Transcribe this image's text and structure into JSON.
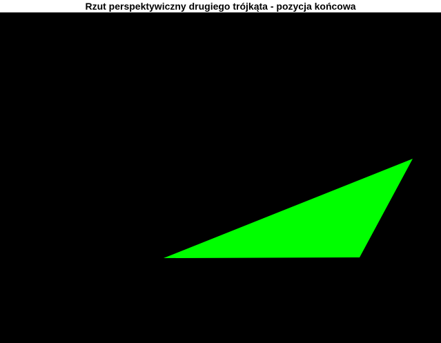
{
  "window": {
    "title": "Rzut perspektywiczny drugiego trójkąta - pozycja końcowa"
  },
  "colors": {
    "background": "#000000",
    "triangle_fill": "#00ff00",
    "title_bar": "#ffffff",
    "title_text": "#000000"
  }
}
